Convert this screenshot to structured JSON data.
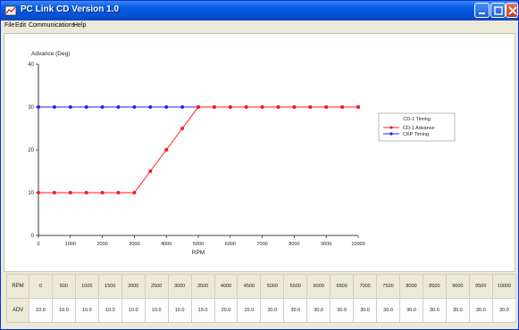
{
  "window": {
    "title": "PC Link CD Version 1.0",
    "title_color": "#0553d6"
  },
  "menu": {
    "items": [
      "File",
      "Edit",
      "Communications",
      "Help"
    ]
  },
  "chart_data": {
    "type": "line",
    "ylabel": "Advance (Deg)",
    "xlabel": "RPM",
    "xlim": [
      0,
      10000
    ],
    "ylim": [
      0,
      40
    ],
    "x_ticks": [
      0,
      1000,
      2000,
      3000,
      4000,
      5000,
      6000,
      7000,
      8000,
      9000,
      10000
    ],
    "y_ticks": [
      0,
      10,
      20,
      30,
      40
    ],
    "grid": false,
    "legend": {
      "title": "CD-1 Timing",
      "placement": "right"
    },
    "x": [
      0,
      500,
      1000,
      1500,
      2000,
      2500,
      3000,
      3500,
      4000,
      4500,
      5000,
      5500,
      6000,
      6500,
      7000,
      7500,
      8000,
      8500,
      9000,
      9500,
      10000
    ],
    "series": [
      {
        "name": "CD-1 Advance",
        "color": "#ff1a1a",
        "values": [
          10,
          10,
          10,
          10,
          10,
          10,
          10,
          15,
          20,
          25,
          30,
          30,
          30,
          30,
          30,
          30,
          30,
          30,
          30,
          30,
          30
        ]
      },
      {
        "name": "CKP Timing",
        "color": "#2222ee",
        "values": [
          30,
          30,
          30,
          30,
          30,
          30,
          30,
          30,
          30,
          30,
          30,
          30,
          30,
          30,
          30,
          30,
          30,
          30,
          30,
          30,
          30
        ]
      }
    ]
  },
  "table": {
    "rpm_label": "RPM",
    "adv_label": "ADV",
    "rpm": [
      "0",
      "500",
      "1000",
      "1500",
      "2000",
      "2500",
      "3000",
      "3500",
      "4000",
      "4500",
      "5000",
      "5500",
      "6000",
      "6500",
      "7000",
      "7500",
      "8000",
      "8500",
      "9000",
      "9500",
      "10000"
    ],
    "adv": [
      "10.0",
      "10.0",
      "10.0",
      "10.0",
      "10.0",
      "10.0",
      "10.0",
      "15.0",
      "20.0",
      "25.0",
      "30.0",
      "30.0",
      "30.0",
      "30.0",
      "30.0",
      "30.0",
      "30.0",
      "30.0",
      "30.0",
      "30.0",
      "30.0"
    ]
  }
}
